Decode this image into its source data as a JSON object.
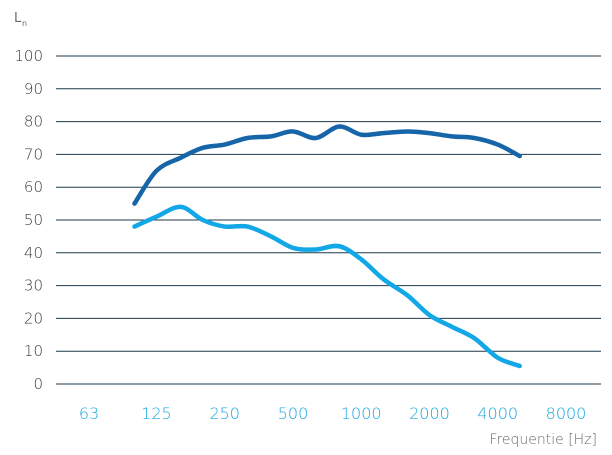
{
  "chart_data": {
    "type": "line",
    "ylabel_main": "L",
    "ylabel_sub": "n",
    "xlabel": "Frequentie [Hz]",
    "ylim": [
      0,
      100
    ],
    "yticks": [
      "0",
      "10",
      "20",
      "30",
      "40",
      "50",
      "60",
      "70",
      "80",
      "90",
      "100"
    ],
    "x_tick_labels": [
      "63",
      "125",
      "250",
      "500",
      "1000",
      "2000",
      "4000",
      "8000"
    ],
    "grid": "horizontal",
    "colors": {
      "tick_text": "#1aa8e0",
      "grid": "#1f3a4d"
    },
    "series": [
      {
        "color": "#1565a8",
        "points": [
          {
            "x": 100,
            "y": 55
          },
          {
            "x": 125,
            "y": 65
          },
          {
            "x": 160,
            "y": 69
          },
          {
            "x": 200,
            "y": 72
          },
          {
            "x": 250,
            "y": 73
          },
          {
            "x": 315,
            "y": 75
          },
          {
            "x": 400,
            "y": 75.5
          },
          {
            "x": 500,
            "y": 77
          },
          {
            "x": 630,
            "y": 75
          },
          {
            "x": 800,
            "y": 78.5
          },
          {
            "x": 1000,
            "y": 76
          },
          {
            "x": 1250,
            "y": 76.5
          },
          {
            "x": 1600,
            "y": 77
          },
          {
            "x": 2000,
            "y": 76.5
          },
          {
            "x": 2500,
            "y": 75.5
          },
          {
            "x": 3150,
            "y": 75
          },
          {
            "x": 4000,
            "y": 73
          },
          {
            "x": 5000,
            "y": 69.5
          }
        ]
      },
      {
        "color": "#12a7e6",
        "points": [
          {
            "x": 100,
            "y": 48
          },
          {
            "x": 125,
            "y": 51
          },
          {
            "x": 160,
            "y": 54
          },
          {
            "x": 200,
            "y": 50
          },
          {
            "x": 250,
            "y": 48
          },
          {
            "x": 315,
            "y": 48
          },
          {
            "x": 400,
            "y": 45
          },
          {
            "x": 500,
            "y": 41.5
          },
          {
            "x": 630,
            "y": 41
          },
          {
            "x": 800,
            "y": 42
          },
          {
            "x": 1000,
            "y": 38
          },
          {
            "x": 1250,
            "y": 32
          },
          {
            "x": 1600,
            "y": 27
          },
          {
            "x": 2000,
            "y": 21
          },
          {
            "x": 2500,
            "y": 17.5
          },
          {
            "x": 3150,
            "y": 14
          },
          {
            "x": 4000,
            "y": 8
          },
          {
            "x": 5000,
            "y": 5.5
          }
        ]
      }
    ]
  }
}
